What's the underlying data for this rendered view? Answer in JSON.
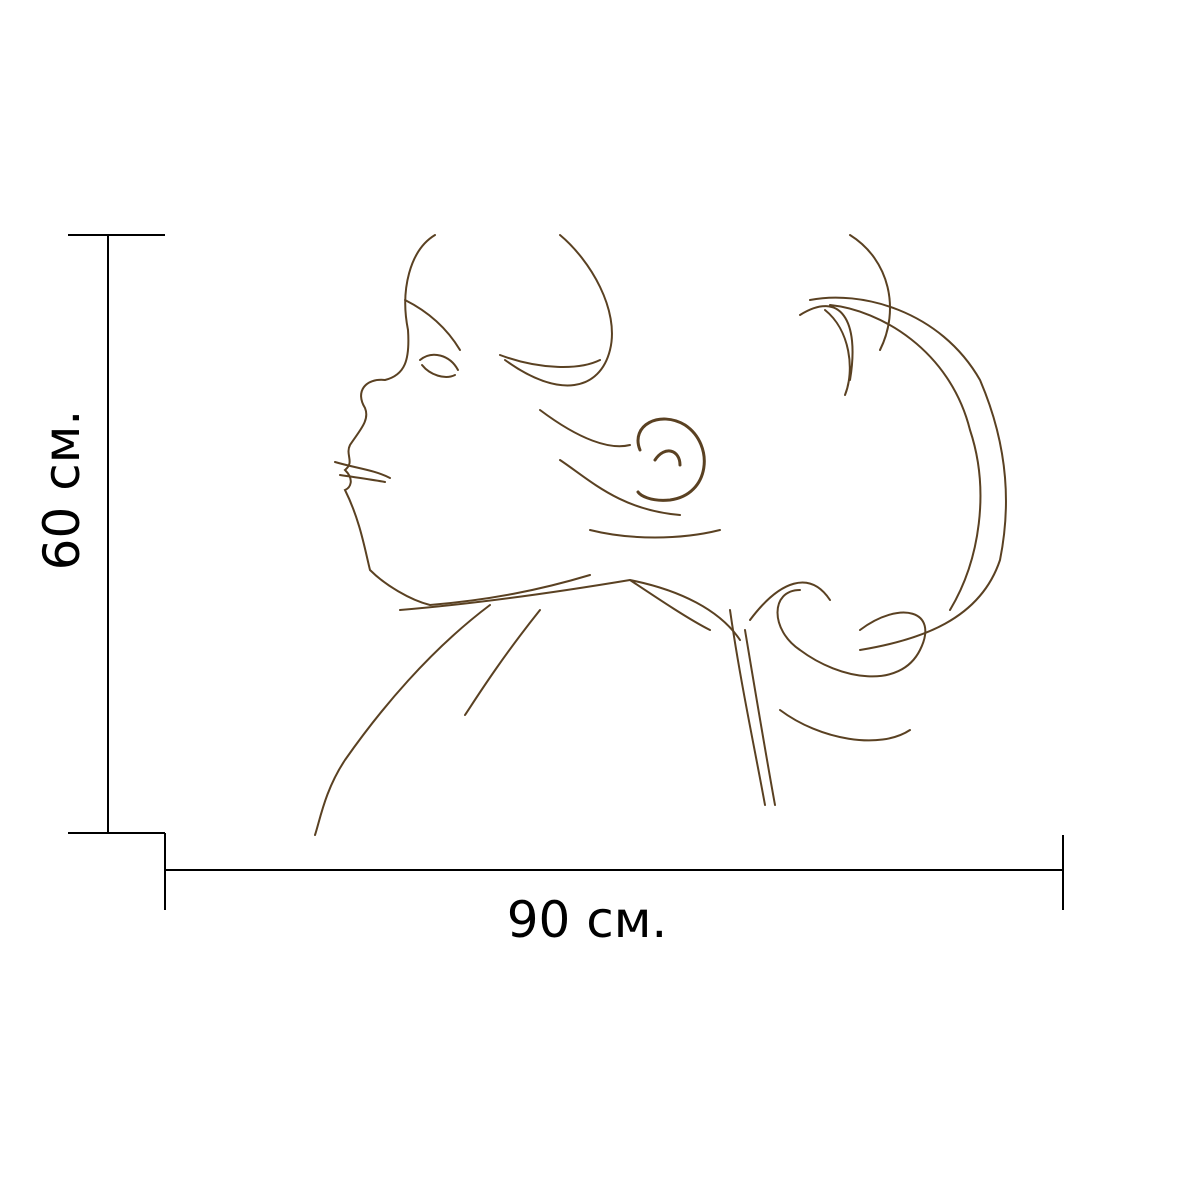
{
  "dimensions": {
    "width_label": "90 см.",
    "height_label": "60 см."
  },
  "artwork": {
    "subject": "child-profile-sketch",
    "stroke_color": "#5a4122"
  }
}
